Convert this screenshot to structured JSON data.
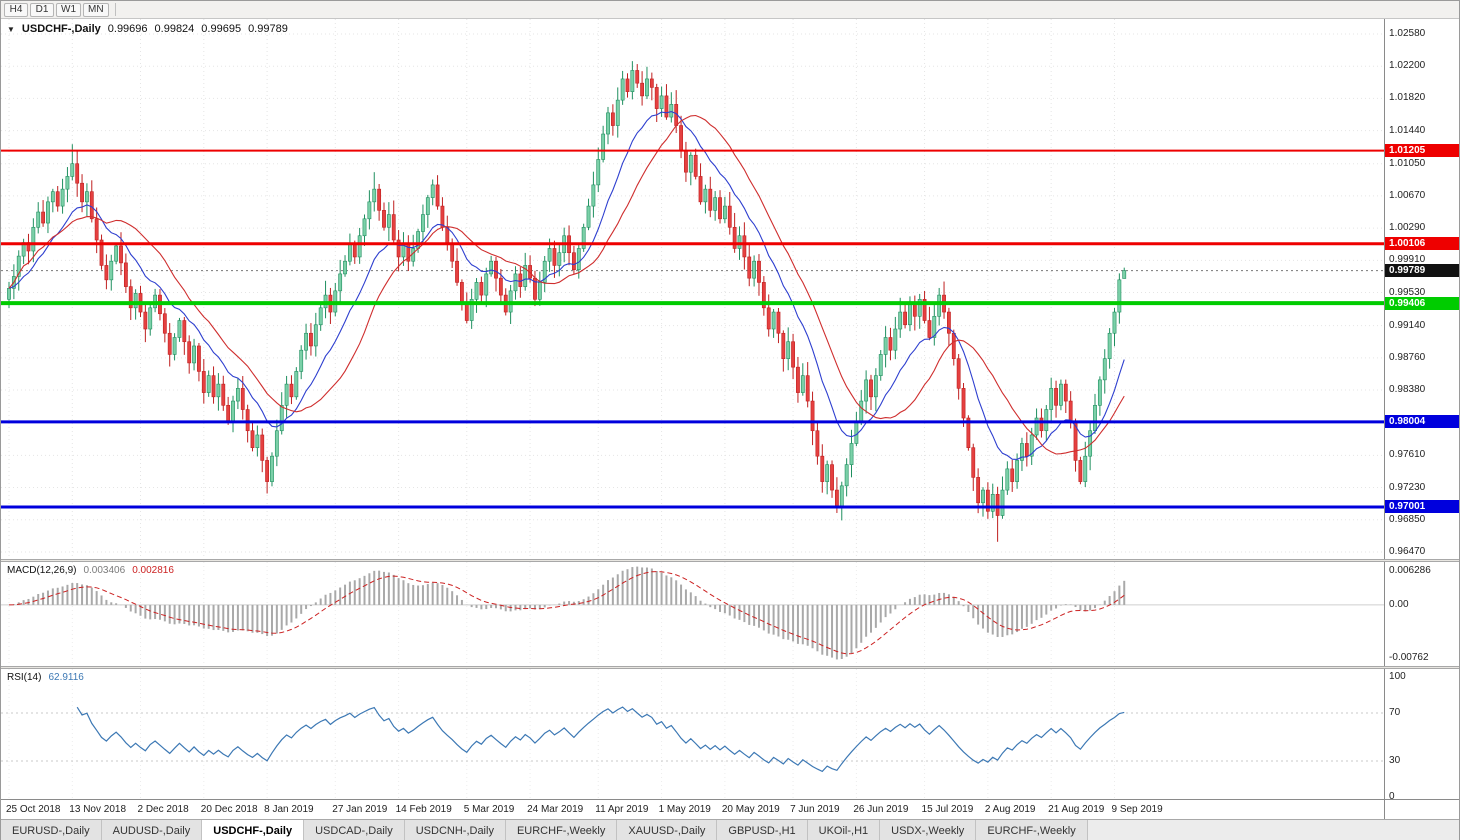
{
  "toolbar": {
    "timeframes": [
      "H4",
      "D1",
      "W1",
      "MN"
    ]
  },
  "main_chart": {
    "symbol_label": "USDCHF-,Daily",
    "open": "0.99696",
    "high": "0.99824",
    "low": "0.99695",
    "close": "0.99789",
    "price_axis": {
      "max": 1.02757,
      "min": 0.96387,
      "labels": [
        "1.02580",
        "1.02200",
        "1.01820",
        "1.01440",
        "1.01050",
        "1.00670",
        "1.00290",
        "0.99910",
        "0.99530",
        "0.99140",
        "0.98760",
        "0.98380",
        "0.97610",
        "0.97230",
        "0.96850",
        "0.96470"
      ]
    },
    "levels": [
      {
        "price": 1.01205,
        "label": "1.01205",
        "color": "#ee0000",
        "width": 2
      },
      {
        "price": 1.00106,
        "label": "1.00106",
        "color": "#ee0000",
        "width": 3
      },
      {
        "price": 0.99406,
        "label": "0.99406",
        "color": "#00cc00",
        "width": 4
      },
      {
        "price": 0.98004,
        "label": "0.98004",
        "color": "#0000dd",
        "width": 3
      },
      {
        "price": 0.97001,
        "label": "0.97001",
        "color": "#0000dd",
        "width": 3
      }
    ],
    "current_price": {
      "value": 0.99789,
      "label": "0.99789",
      "box_color": "#111111"
    },
    "colors": {
      "up_fill": "#7bd0a8",
      "up_stroke": "#1f8f5f",
      "down_fill": "#e54040",
      "down_stroke": "#bf1f1f",
      "ma_fast": "#2e3fcf",
      "ma_slow": "#cf2e2e",
      "grid": "#e5e5e5"
    }
  },
  "macd_panel": {
    "label": "MACD(12,26,9)",
    "main_value": "0.003406",
    "signal_value": "0.002816",
    "axis_top": "0.006286",
    "axis_zero": "0.00",
    "axis_bottom": "-0.00762",
    "histogram_color": "#a9a9a9",
    "signal_color": "#cc2222"
  },
  "rsi_panel": {
    "label": "RSI(14)",
    "value": "62.9116",
    "axis_labels": [
      100,
      70,
      30,
      0
    ],
    "dashed_levels": [
      70,
      30
    ],
    "line_color": "#3c78b4"
  },
  "date_axis": {
    "ticks": [
      {
        "index": 0,
        "label": "25 Oct 2018"
      },
      {
        "index": 13,
        "label": "13 Nov 2018"
      },
      {
        "index": 27,
        "label": "2 Dec 2018"
      },
      {
        "index": 40,
        "label": "20 Dec 2018"
      },
      {
        "index": 53,
        "label": "8 Jan 2019"
      },
      {
        "index": 67,
        "label": "27 Jan 2019"
      },
      {
        "index": 80,
        "label": "14 Feb 2019"
      },
      {
        "index": 94,
        "label": "5 Mar 2019"
      },
      {
        "index": 107,
        "label": "24 Mar 2019"
      },
      {
        "index": 121,
        "label": "11 Apr 2019"
      },
      {
        "index": 134,
        "label": "1 May 2019"
      },
      {
        "index": 147,
        "label": "20 May 2019"
      },
      {
        "index": 161,
        "label": "7 Jun 2019"
      },
      {
        "index": 174,
        "label": "26 Jun 2019"
      },
      {
        "index": 188,
        "label": "15 Jul 2019"
      },
      {
        "index": 201,
        "label": "2 Aug 2019"
      },
      {
        "index": 214,
        "label": "21 Aug 2019"
      },
      {
        "index": 227,
        "label": "9 Sep 2019"
      }
    ]
  },
  "tabs": {
    "items": [
      "EURUSD-,Daily",
      "AUDUSD-,Daily",
      "USDCHF-,Daily",
      "USDCAD-,Daily",
      "USDCNH-,Daily",
      "EURCHF-,Weekly",
      "XAUUSD-,Daily",
      "GBPUSD-,H1",
      "UKOil-,H1",
      "USDX-,Weekly",
      "EURCHF-,Weekly"
    ],
    "active_index": 2
  },
  "chart_data": {
    "type": "candlestick",
    "title": "USDCHF Daily",
    "closes": [
      0.9958,
      0.9972,
      0.9996,
      1.0012,
      1.0002,
      1.003,
      1.0048,
      1.0035,
      1.006,
      1.0072,
      1.0055,
      1.0075,
      1.009,
      1.0105,
      1.0082,
      1.006,
      1.0072,
      1.004,
      1.0015,
      0.9985,
      0.9968,
      0.999,
      1.0008,
      0.9988,
      0.996,
      0.9935,
      0.9952,
      0.993,
      0.991,
      0.9935,
      0.995,
      0.9928,
      0.9905,
      0.988,
      0.99,
      0.992,
      0.9895,
      0.987,
      0.989,
      0.986,
      0.9835,
      0.9855,
      0.983,
      0.9845,
      0.982,
      0.98,
      0.9825,
      0.984,
      0.9815,
      0.979,
      0.977,
      0.9785,
      0.9755,
      0.973,
      0.976,
      0.979,
      0.982,
      0.9845,
      0.983,
      0.986,
      0.9885,
      0.9905,
      0.989,
      0.9915,
      0.9935,
      0.995,
      0.993,
      0.9955,
      0.9975,
      0.999,
      1.001,
      0.9995,
      1.002,
      1.004,
      1.006,
      1.0075,
      1.005,
      1.003,
      1.0045,
      1.0015,
      0.9995,
      1.001,
      0.999,
      1.0005,
      1.0025,
      1.0045,
      1.0065,
      1.008,
      1.0055,
      1.003,
      1.001,
      0.999,
      0.9965,
      0.994,
      0.992,
      0.9945,
      0.9965,
      0.995,
      0.9975,
      0.999,
      0.997,
      0.995,
      0.993,
      0.9955,
      0.9975,
      0.996,
      0.9985,
      0.997,
      0.9945,
      0.9965,
      0.999,
      1.0005,
      0.9985,
      1.0,
      1.002,
      1.0,
      0.998,
      1.0005,
      1.003,
      1.0055,
      1.008,
      1.011,
      1.014,
      1.0165,
      1.015,
      1.018,
      1.0205,
      1.019,
      1.0215,
      1.02,
      1.0185,
      1.0205,
      1.0195,
      1.017,
      1.0185,
      1.016,
      1.0175,
      1.015,
      1.012,
      1.0095,
      1.0115,
      1.009,
      1.006,
      1.0075,
      1.005,
      1.0065,
      1.004,
      1.0055,
      1.003,
      1.0005,
      1.002,
      0.9995,
      0.997,
      0.999,
      0.9965,
      0.9935,
      0.991,
      0.993,
      0.9905,
      0.9875,
      0.9895,
      0.9865,
      0.9835,
      0.9855,
      0.9825,
      0.979,
      0.976,
      0.973,
      0.975,
      0.972,
      0.97,
      0.9725,
      0.975,
      0.9775,
      0.98,
      0.9825,
      0.985,
      0.983,
      0.9855,
      0.988,
      0.99,
      0.9885,
      0.991,
      0.993,
      0.9915,
      0.994,
      0.9925,
      0.9945,
      0.992,
      0.99,
      0.9925,
      0.995,
      0.993,
      0.9905,
      0.9875,
      0.984,
      0.9805,
      0.977,
      0.9735,
      0.9705,
      0.972,
      0.9695,
      0.9715,
      0.969,
      0.972,
      0.9745,
      0.973,
      0.9755,
      0.9775,
      0.976,
      0.9785,
      0.9805,
      0.979,
      0.9815,
      0.984,
      0.982,
      0.9845,
      0.9825,
      0.98,
      0.9755,
      0.973,
      0.976,
      0.979,
      0.982,
      0.985,
      0.9875,
      0.9905,
      0.993,
      0.9968,
      0.99789
    ],
    "overrides": {
      "13": {
        "h": 1.0128
      },
      "53": {
        "l": 0.9716
      },
      "75": {
        "h": 1.0095
      },
      "128": {
        "h": 1.0226
      },
      "170": {
        "l": 0.9693
      },
      "203": {
        "l": 0.9659
      },
      "229": {
        "o": 0.99696,
        "h": 0.99824,
        "l": 0.99695,
        "c": 0.99789
      }
    },
    "indicators": {
      "ma_fast": {
        "type": "ema",
        "period": 13
      },
      "ma_slow": {
        "type": "sma",
        "period": 21
      },
      "macd": {
        "fast": 12,
        "slow": 26,
        "signal": 9,
        "current_main": 0.003406,
        "current_signal": 0.002816,
        "scale_top": 0.006286,
        "scale_bottom": -0.00762
      },
      "rsi": {
        "period": 14,
        "current": 62.9116
      }
    }
  }
}
